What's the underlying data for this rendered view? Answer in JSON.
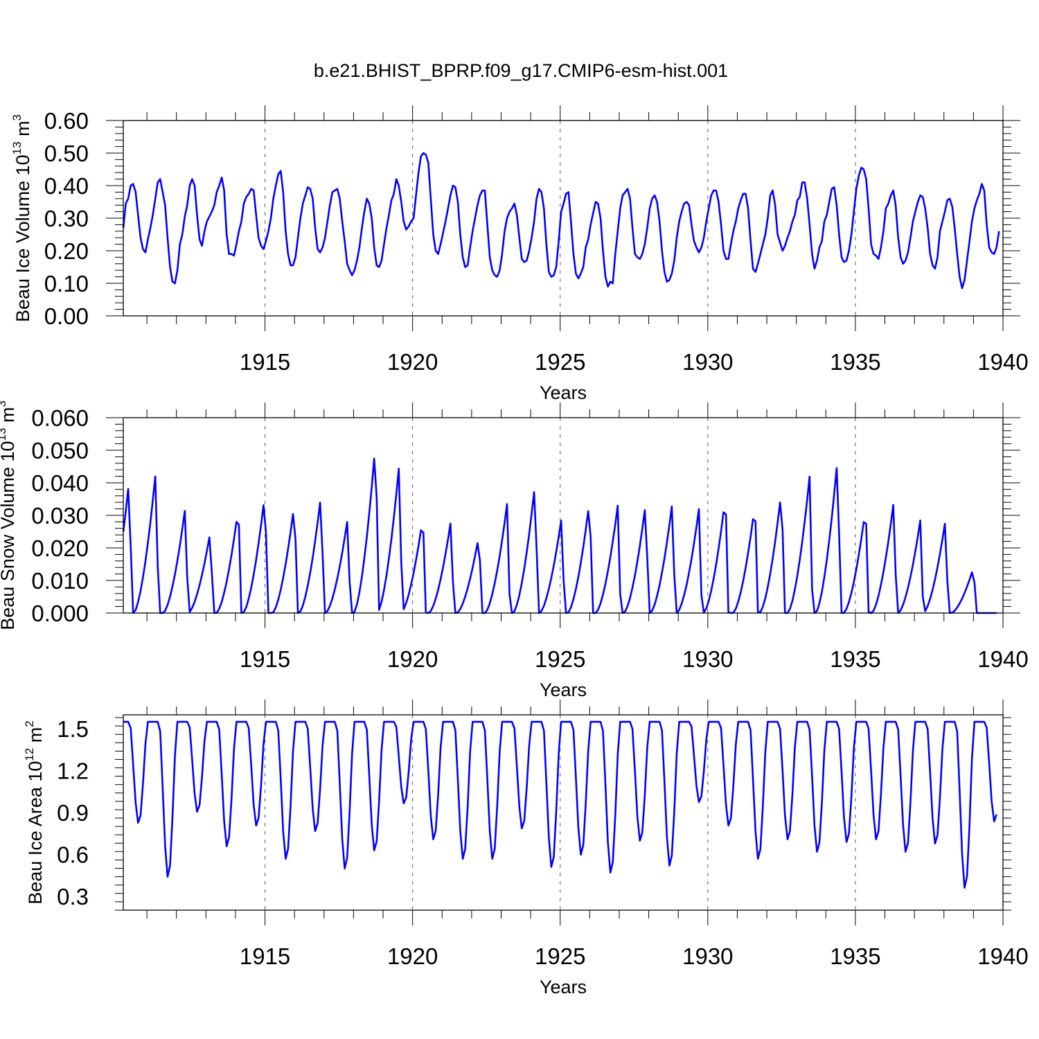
{
  "title": "b.e21.BHIST_BPRP.f09_g17.CMIP6-esm-hist.001",
  "colors": {
    "series": "#0000ff",
    "axes": "#000000",
    "grid": "#555555"
  },
  "chart_data": [
    {
      "type": "line",
      "title": "",
      "xlabel": "Years",
      "ylabel": {
        "text": "Beau Ice Volume 10",
        "sup": "13",
        "unit": " m",
        "unit_sup": "3"
      },
      "xlim": [
        1910.2,
        1940
      ],
      "ylim": [
        0,
        0.6
      ],
      "x_ticks": [
        "1915",
        "1920",
        "1925",
        "1930",
        "1935",
        "1940"
      ],
      "y_ticks": [
        "0.00",
        "0.10",
        "0.20",
        "0.30",
        "0.40",
        "0.50",
        "0.60"
      ],
      "grid": "dashed vertical lines at 5-year ticks",
      "series": [
        {
          "x_start": 1910.2,
          "x_step": 0.08333,
          "values": [
            0.27,
            0.345,
            0.36,
            0.4,
            0.405,
            0.38,
            0.31,
            0.24,
            0.205,
            0.195,
            0.235,
            0.27,
            0.31,
            0.36,
            0.41,
            0.42,
            0.38,
            0.34,
            0.24,
            0.15,
            0.105,
            0.1,
            0.14,
            0.22,
            0.25,
            0.305,
            0.34,
            0.4,
            0.42,
            0.4,
            0.31,
            0.235,
            0.215,
            0.26,
            0.29,
            0.305,
            0.32,
            0.34,
            0.38,
            0.4,
            0.425,
            0.385,
            0.25,
            0.19,
            0.19,
            0.185,
            0.22,
            0.26,
            0.29,
            0.345,
            0.365,
            0.375,
            0.39,
            0.385,
            0.31,
            0.24,
            0.215,
            0.205,
            0.23,
            0.26,
            0.3,
            0.36,
            0.4,
            0.435,
            0.445,
            0.38,
            0.26,
            0.19,
            0.155,
            0.155,
            0.18,
            0.24,
            0.3,
            0.345,
            0.37,
            0.395,
            0.39,
            0.36,
            0.27,
            0.205,
            0.195,
            0.21,
            0.24,
            0.29,
            0.34,
            0.38,
            0.385,
            0.39,
            0.36,
            0.29,
            0.23,
            0.16,
            0.14,
            0.125,
            0.14,
            0.17,
            0.21,
            0.27,
            0.32,
            0.36,
            0.345,
            0.3,
            0.21,
            0.155,
            0.15,
            0.17,
            0.22,
            0.27,
            0.31,
            0.355,
            0.375,
            0.42,
            0.4,
            0.35,
            0.29,
            0.265,
            0.275,
            0.29,
            0.3,
            0.37,
            0.44,
            0.49,
            0.5,
            0.495,
            0.47,
            0.36,
            0.25,
            0.2,
            0.19,
            0.22,
            0.255,
            0.29,
            0.33,
            0.37,
            0.4,
            0.395,
            0.35,
            0.25,
            0.18,
            0.15,
            0.155,
            0.21,
            0.26,
            0.3,
            0.34,
            0.37,
            0.385,
            0.385,
            0.28,
            0.18,
            0.14,
            0.125,
            0.12,
            0.14,
            0.19,
            0.26,
            0.3,
            0.32,
            0.33,
            0.345,
            0.31,
            0.24,
            0.175,
            0.165,
            0.17,
            0.2,
            0.24,
            0.29,
            0.36,
            0.39,
            0.38,
            0.33,
            0.22,
            0.135,
            0.12,
            0.125,
            0.15,
            0.23,
            0.32,
            0.345,
            0.375,
            0.38,
            0.29,
            0.19,
            0.13,
            0.115,
            0.13,
            0.15,
            0.21,
            0.235,
            0.28,
            0.315,
            0.35,
            0.345,
            0.3,
            0.2,
            0.12,
            0.09,
            0.105,
            0.1,
            0.19,
            0.26,
            0.33,
            0.37,
            0.38,
            0.39,
            0.36,
            0.27,
            0.19,
            0.18,
            0.175,
            0.19,
            0.22,
            0.27,
            0.33,
            0.36,
            0.37,
            0.35,
            0.29,
            0.2,
            0.135,
            0.105,
            0.11,
            0.13,
            0.17,
            0.24,
            0.29,
            0.32,
            0.345,
            0.35,
            0.34,
            0.28,
            0.23,
            0.21,
            0.195,
            0.21,
            0.24,
            0.29,
            0.33,
            0.37,
            0.385,
            0.385,
            0.35,
            0.28,
            0.2,
            0.175,
            0.175,
            0.22,
            0.26,
            0.29,
            0.33,
            0.355,
            0.375,
            0.375,
            0.33,
            0.23,
            0.145,
            0.135,
            0.16,
            0.19,
            0.22,
            0.25,
            0.3,
            0.37,
            0.385,
            0.34,
            0.25,
            0.225,
            0.2,
            0.215,
            0.24,
            0.26,
            0.29,
            0.31,
            0.355,
            0.365,
            0.41,
            0.41,
            0.36,
            0.28,
            0.19,
            0.145,
            0.17,
            0.21,
            0.23,
            0.29,
            0.31,
            0.35,
            0.39,
            0.395,
            0.34,
            0.25,
            0.18,
            0.165,
            0.17,
            0.2,
            0.25,
            0.32,
            0.39,
            0.43,
            0.455,
            0.45,
            0.42,
            0.33,
            0.22,
            0.19,
            0.185,
            0.175,
            0.21,
            0.26,
            0.33,
            0.345,
            0.37,
            0.385,
            0.34,
            0.24,
            0.18,
            0.16,
            0.17,
            0.195,
            0.24,
            0.29,
            0.32,
            0.35,
            0.37,
            0.365,
            0.33,
            0.27,
            0.19,
            0.155,
            0.145,
            0.18,
            0.26,
            0.29,
            0.32,
            0.355,
            0.36,
            0.335,
            0.27,
            0.19,
            0.12,
            0.085,
            0.11,
            0.17,
            0.23,
            0.29,
            0.33,
            0.355,
            0.375,
            0.405,
            0.385,
            0.28,
            0.21,
            0.195,
            0.19,
            0.21,
            0.26
          ]
        }
      ]
    },
    {
      "type": "line",
      "title": "",
      "xlabel": "Years",
      "ylabel": {
        "text": "Beau Snow Volume 10",
        "sup": "13",
        "unit": " m",
        "unit_sup": "3"
      },
      "xlim": [
        1910.2,
        1940
      ],
      "ylim": [
        0,
        0.06
      ],
      "x_ticks": [
        "1915",
        "1920",
        "1925",
        "1930",
        "1935",
        "1940"
      ],
      "y_ticks": [
        "0.000",
        "0.010",
        "0.020",
        "0.030",
        "0.040",
        "0.050",
        "0.060"
      ],
      "grid": "dashed vertical lines at 5-year ticks",
      "series": [
        {
          "x_start": 1910.2,
          "x_step": 0.08333,
          "peak_times": [
            1910.4,
            1911.3,
            1912.3,
            1913.15,
            1914.1,
            1915.0,
            1916.0,
            1916.9,
            1917.8,
            1918.75,
            1919.55,
            1920.35,
            1921.3,
            1922.25,
            1923.2,
            1924.15,
            1925.05,
            1926.0,
            1926.95,
            1927.9,
            1928.8,
            1929.7,
            1930.6,
            1931.6,
            1932.5,
            1933.45,
            1934.4,
            1935.35,
            1936.3,
            1937.2,
            1938.05,
            1939.0
          ],
          "peak_values": [
            0.041,
            0.0435,
            0.0325,
            0.025,
            0.0325,
            0.037,
            0.034,
            0.0365,
            0.029,
            0.053,
            0.046,
            0.0295,
            0.0285,
            0.024,
            0.0335,
            0.04,
            0.0295,
            0.035,
            0.033,
            0.034,
            0.034,
            0.032,
            0.036,
            0.0335,
            0.038,
            0.042,
            0.048,
            0.0325,
            0.0345,
            0.0285,
            0.0285,
            0.014
          ]
        }
      ]
    },
    {
      "type": "line",
      "title": "",
      "xlabel": "Years",
      "ylabel": {
        "text": "Beau Ice Area 10",
        "sup": "12",
        "unit": " m",
        "unit_sup": "2"
      },
      "xlim": [
        1910.2,
        1940
      ],
      "ylim": [
        0.2,
        1.6
      ],
      "x_ticks": [
        "1915",
        "1920",
        "1925",
        "1930",
        "1935",
        "1940"
      ],
      "y_ticks": [
        "0.3",
        "0.6",
        "0.9",
        "1.2",
        "1.5"
      ],
      "grid": "dashed vertical lines at 5-year ticks",
      "series": [
        {
          "x_start": 1910.2,
          "x_step": 0.08333,
          "max_value": 1.55,
          "minima": [
            0.82,
            0.43,
            0.9,
            0.65,
            0.8,
            0.56,
            0.76,
            0.49,
            0.62,
            0.96,
            0.7,
            0.56,
            0.56,
            0.78,
            0.5,
            0.59,
            0.46,
            0.69,
            0.51,
            0.97,
            0.8,
            0.56,
            0.7,
            0.61,
            0.68,
            0.7,
            0.61,
            0.67,
            0.35,
            0.83
          ]
        }
      ]
    }
  ]
}
